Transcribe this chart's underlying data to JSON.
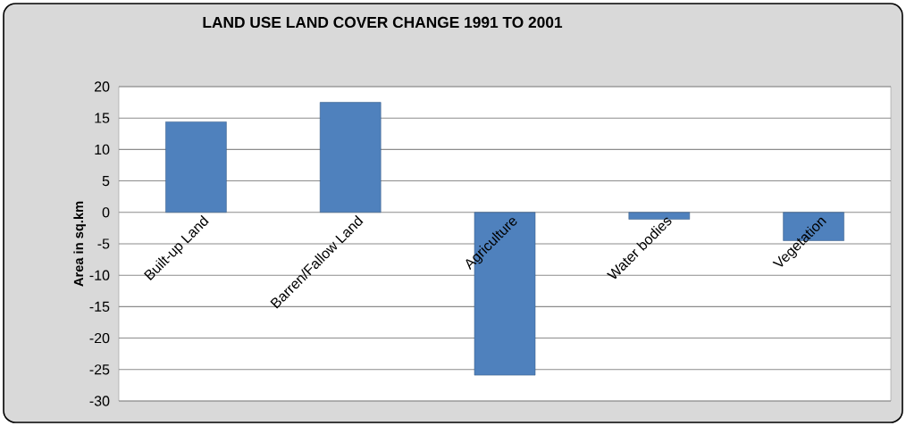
{
  "chart_data": {
    "type": "bar",
    "title": "LAND USE LAND COVER CHANGE 1991 TO 2001",
    "ylabel": "Area in sq.km",
    "categories": [
      "Built-up Land",
      "Barren/Fallow Land",
      "Agriculture",
      "Water bodies",
      "Vegetation"
    ],
    "values": [
      14.4,
      17.5,
      -25.9,
      -1.1,
      -4.5
    ],
    "color": "#4f81bd",
    "ylim": [
      -30,
      20
    ],
    "yticks": [
      -30,
      -25,
      -20,
      -15,
      -10,
      -5,
      0,
      5,
      10,
      15,
      20
    ],
    "grid": "y"
  }
}
